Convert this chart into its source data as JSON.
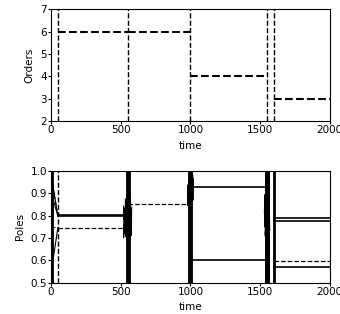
{
  "switching_times": [
    50,
    550,
    1000,
    1550,
    1600
  ],
  "orders_ylim": [
    2,
    7
  ],
  "orders_yticks": [
    2,
    3,
    4,
    5,
    6,
    7
  ],
  "poles_ylim": [
    0.5,
    1.0
  ],
  "poles_yticks": [
    0.5,
    0.6,
    0.7,
    0.8,
    0.9,
    1.0
  ],
  "time_range": [
    0,
    2000
  ],
  "xticks": [
    0,
    500,
    1000,
    1500,
    2000
  ],
  "xlabel": "time",
  "ylabel_orders": "Orders",
  "ylabel_poles": "Poles",
  "fontsize": 7.5
}
